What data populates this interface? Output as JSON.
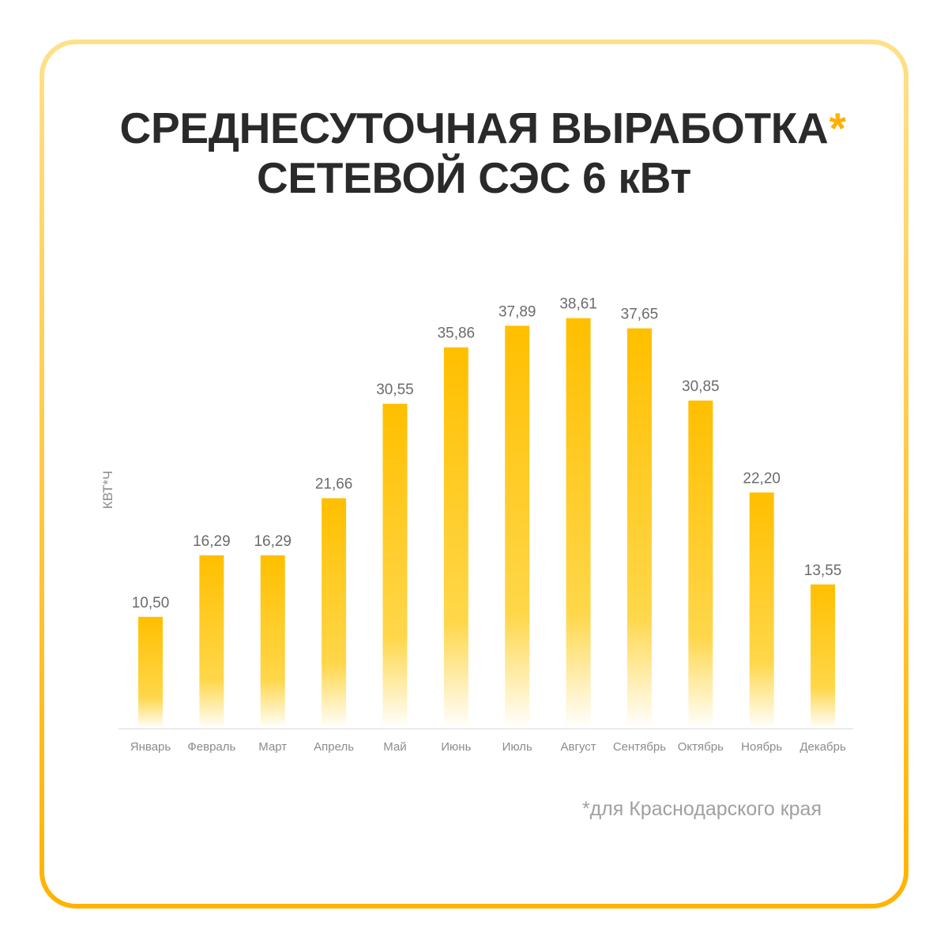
{
  "colors": {
    "frame_top": "#FFE08A",
    "frame_bottom": "#FFB300",
    "title_text": "#2A2A2A",
    "asterisk": "#FFB000",
    "bar_top": "#FFBF00",
    "bar_mid": "#FFD74A",
    "bar_bottom": "#FFFFFF",
    "value_label": "#6B6B6B",
    "axis_label": "#8C8C8C",
    "footnote": "#A0A0A0",
    "axis_line": "#E2E2E2"
  },
  "chart_data": {
    "type": "bar",
    "title": {
      "line1": "СРЕДНЕСУТОЧНАЯ ВЫРАБОТКА",
      "mark": "*",
      "line2": "СЕТЕВОЙ СЭС 6 кВт"
    },
    "ylabel": "КВТ*Ч",
    "categories": [
      "Январь",
      "Февраль",
      "Март",
      "Апрель",
      "Май",
      "Июнь",
      "Июль",
      "Август",
      "Сентябрь",
      "Октябрь",
      "Ноябрь",
      "Декабрь"
    ],
    "values": [
      10.5,
      16.29,
      16.29,
      21.66,
      30.55,
      35.86,
      37.89,
      38.61,
      37.65,
      30.85,
      22.2,
      13.55
    ],
    "ylim": [
      0,
      40
    ],
    "grid": false,
    "data_labels": true,
    "footnote": "*для Краснодарского края"
  }
}
